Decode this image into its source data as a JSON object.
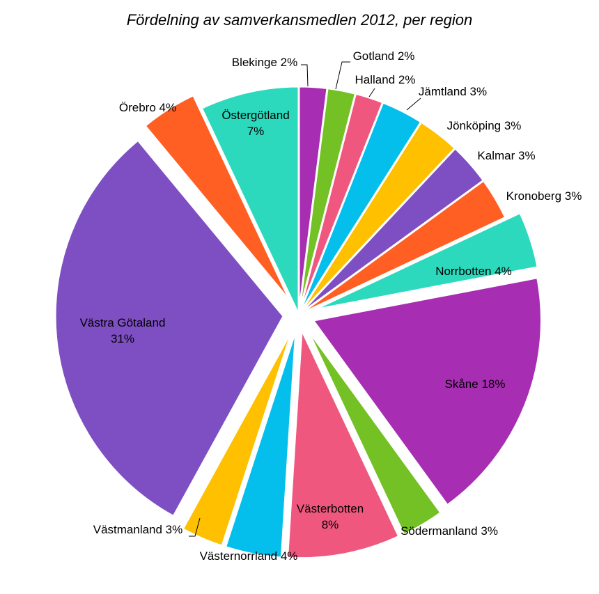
{
  "chart_data": {
    "type": "pie",
    "title": "Fördelning av samverkansmedlen 2012, per region",
    "slices": [
      {
        "name": "Blekinge",
        "label": "Blekinge 2%",
        "value": 2,
        "color": "#A72DB2"
      },
      {
        "name": "Gotland",
        "label": "Gotland 2%",
        "value": 2,
        "color": "#73C124"
      },
      {
        "name": "Halland",
        "label": "Halland 2%",
        "value": 2,
        "color": "#F0577F"
      },
      {
        "name": "Jämtland",
        "label": "Jämtland 3%",
        "value": 3,
        "color": "#04BFEB"
      },
      {
        "name": "Jönköping",
        "label": "Jönköping 3%",
        "value": 3,
        "color": "#FFC000"
      },
      {
        "name": "Kalmar",
        "label": "Kalmar 3%",
        "value": 3,
        "color": "#7E4EC3"
      },
      {
        "name": "Kronoberg",
        "label": "Kronoberg 3%",
        "value": 3,
        "color": "#FF5F22"
      },
      {
        "name": "Norrbotten",
        "label": "Norrbotten 4%",
        "value": 4,
        "color": "#2CD9BD"
      },
      {
        "name": "Skåne",
        "label": "Skåne 18%",
        "value": 18,
        "color": "#A72DB2"
      },
      {
        "name": "Södermanland",
        "label": "Södermanland 3%",
        "value": 3,
        "color": "#73C124"
      },
      {
        "name": "Västerbotten",
        "label": "Västerbotten\n8%",
        "value": 8,
        "color": "#F0577F"
      },
      {
        "name": "Västernorrland",
        "label": "Västernorrland 4%",
        "value": 4,
        "color": "#04BFEB"
      },
      {
        "name": "Västmanland",
        "label": "Västmanland 3%",
        "value": 3,
        "color": "#FFC000"
      },
      {
        "name": "Västra Götaland",
        "label": "Västra Götaland\n31%",
        "value": 31,
        "color": "#7E4EC3"
      },
      {
        "name": "Örebro",
        "label": "Örebro 4%",
        "value": 4,
        "color": "#FF5F22"
      },
      {
        "name": "Östergötland",
        "label": "Östergötland\n7%",
        "value": 7,
        "color": "#2CD9BD"
      }
    ]
  }
}
